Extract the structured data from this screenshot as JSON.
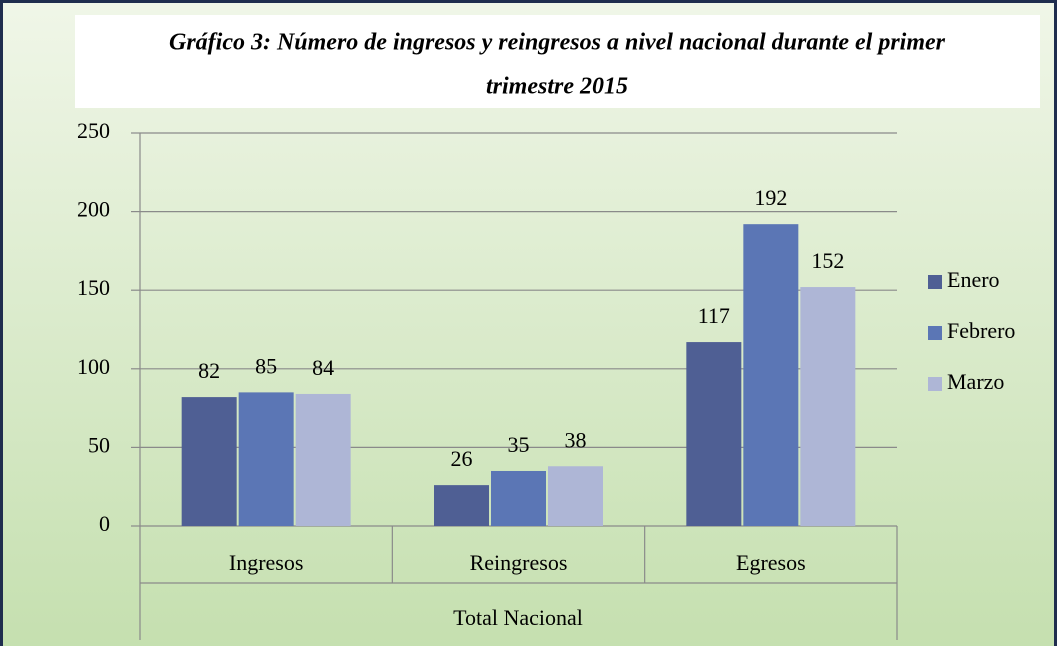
{
  "chart_data": {
    "type": "bar",
    "title": "Gráfico 3: Número de ingresos y reingresos a nivel nacional durante el  primer trimestre 2015",
    "categories": [
      "Ingresos",
      "Reingresos",
      "Egresos"
    ],
    "category_group": "Total Nacional",
    "series": [
      {
        "name": "Enero",
        "color": "#4f5f94",
        "values": [
          82,
          26,
          117
        ]
      },
      {
        "name": "Febrero",
        "color": "#5b76b5",
        "values": [
          85,
          35,
          192
        ]
      },
      {
        "name": "Marzo",
        "color": "#aeb6d6",
        "values": [
          84,
          38,
          152
        ]
      }
    ],
    "ylim": [
      0,
      250
    ],
    "yticks": [
      0,
      50,
      100,
      150,
      200,
      250
    ],
    "grid": true,
    "legend": "right"
  }
}
